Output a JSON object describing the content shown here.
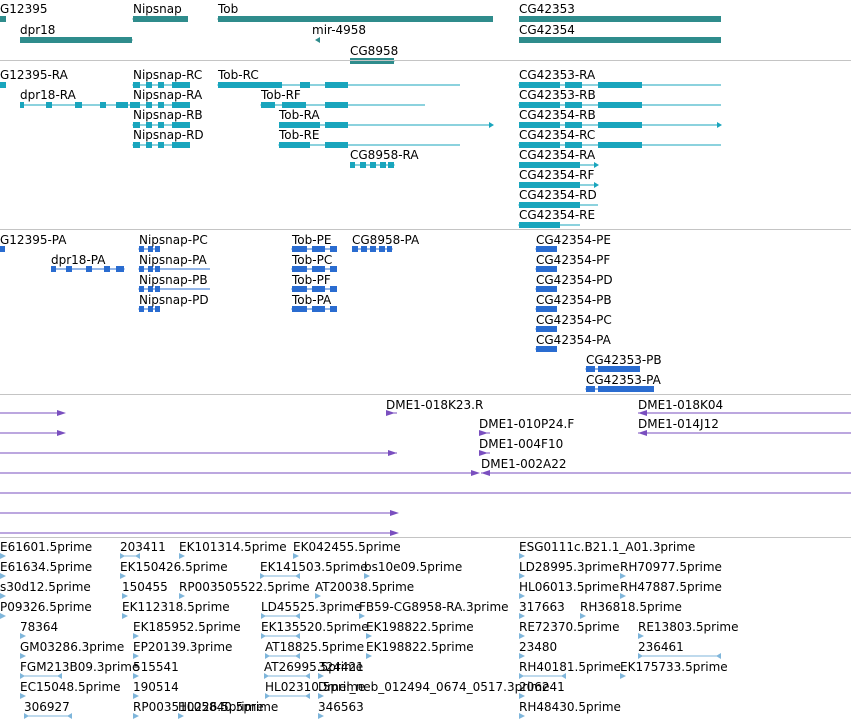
{
  "tracks": [
    {
      "name": "gene-track",
      "color": "#2f8c8c",
      "features": [
        {
          "label": "G12395"
        },
        {
          "label": "Nipsnap"
        },
        {
          "label": "Tob"
        },
        {
          "label": "CG42353"
        },
        {
          "label": "dpr18"
        },
        {
          "label": "mir-4958"
        },
        {
          "label": "CG42354"
        },
        {
          "label": "CG8958"
        }
      ]
    },
    {
      "name": "transcript-track",
      "color": "#19a5bd",
      "features": [
        {
          "label": "G12395-RA"
        },
        {
          "label": "Nipsnap-RC"
        },
        {
          "label": "Tob-RC"
        },
        {
          "label": "CG42353-RA"
        },
        {
          "label": "dpr18-RA"
        },
        {
          "label": "Nipsnap-RA"
        },
        {
          "label": "Tob-RF"
        },
        {
          "label": "CG42353-RB"
        },
        {
          "label": "Nipsnap-RB"
        },
        {
          "label": "Tob-RA"
        },
        {
          "label": "CG42354-RB"
        },
        {
          "label": "Nipsnap-RD"
        },
        {
          "label": "Tob-RE"
        },
        {
          "label": "CG42354-RC"
        },
        {
          "label": "CG8958-RA"
        },
        {
          "label": "CG42354-RA"
        },
        {
          "label": "CG42354-RF"
        },
        {
          "label": "CG42354-RD"
        },
        {
          "label": "CG42354-RE"
        }
      ]
    },
    {
      "name": "protein-track",
      "color": "#2a6cd0",
      "features": [
        {
          "label": "G12395-PA"
        },
        {
          "label": "Nipsnap-PC"
        },
        {
          "label": "Tob-PE"
        },
        {
          "label": "CG8958-PA"
        },
        {
          "label": "CG42354-PE"
        },
        {
          "label": "dpr18-PA"
        },
        {
          "label": "Nipsnap-PA"
        },
        {
          "label": "Tob-PC"
        },
        {
          "label": "CG42354-PF"
        },
        {
          "label": "Nipsnap-PB"
        },
        {
          "label": "Tob-PF"
        },
        {
          "label": "CG42354-PD"
        },
        {
          "label": "Nipsnap-PD"
        },
        {
          "label": "Tob-PA"
        },
        {
          "label": "CG42354-PB"
        },
        {
          "label": "CG42354-PC"
        },
        {
          "label": "CG42354-PA"
        },
        {
          "label": "CG42353-PB"
        },
        {
          "label": "CG42353-PA"
        }
      ]
    },
    {
      "name": "bac-track",
      "color": "#7a4fbf",
      "features": [
        {
          "label": "DME1-018K23.R"
        },
        {
          "label": "DME1-018K04"
        },
        {
          "label": "DME1-010P24.F"
        },
        {
          "label": "DME1-014J12"
        },
        {
          "label": "DME1-004F10"
        },
        {
          "label": "DME1-002A22"
        }
      ]
    },
    {
      "name": "est-track",
      "color": "#7fb6db",
      "features": [
        {
          "label": "E61601.5prime"
        },
        {
          "label": "203411"
        },
        {
          "label": "EK101314.5prime"
        },
        {
          "label": "EK042455.5prime"
        },
        {
          "label": "ESG0111c.B21.1_A01.3prime"
        },
        {
          "label": "E61634.5prime"
        },
        {
          "label": "EK150426.5prime"
        },
        {
          "label": "EK141503.5prime"
        },
        {
          "label": "bs10e09.5prime"
        },
        {
          "label": "LD28995.3prime"
        },
        {
          "label": "RH70977.5prime"
        },
        {
          "label": "s30d12.5prime"
        },
        {
          "label": "150455"
        },
        {
          "label": "RP003505522.5prime"
        },
        {
          "label": "AT20038.5prime"
        },
        {
          "label": "HL06013.5prime"
        },
        {
          "label": "RH47887.5prime"
        },
        {
          "label": "P09326.5prime"
        },
        {
          "label": "EK112318.5prime"
        },
        {
          "label": "LD45525.3prime"
        },
        {
          "label": "FB59-CG8958-RA.3prime"
        },
        {
          "label": "317663"
        },
        {
          "label": "RH36818.5prime"
        },
        {
          "label": "78364"
        },
        {
          "label": "EK185952.5prime"
        },
        {
          "label": "EK135520.5prime"
        },
        {
          "label": "EK198822.5prime"
        },
        {
          "label": "RE72370.5prime"
        },
        {
          "label": "RE13803.5prime"
        },
        {
          "label": "GM03286.3prime"
        },
        {
          "label": "EP20139.3prime"
        },
        {
          "label": "AT18825.5prime"
        },
        {
          "label": "EK198822.5prime"
        },
        {
          "label": "23480"
        },
        {
          "label": "236461"
        },
        {
          "label": "FGM213B09.3prime"
        },
        {
          "label": "515541"
        },
        {
          "label": "AT26995.5prime"
        },
        {
          "label": "324421"
        },
        {
          "label": "RH40181.5prime"
        },
        {
          "label": "EK175733.5prime"
        },
        {
          "label": "EC15048.5prime"
        },
        {
          "label": "190514"
        },
        {
          "label": "HL02310.5prime"
        },
        {
          "label": "Dmel_neb_012494_0674_0517.3prime"
        },
        {
          "label": "206241"
        },
        {
          "label": "306927"
        },
        {
          "label": "RP003510226.5prime"
        },
        {
          "label": "HL05840.5prime"
        },
        {
          "label": "346563"
        },
        {
          "label": "RH48430.5prime"
        }
      ]
    }
  ]
}
